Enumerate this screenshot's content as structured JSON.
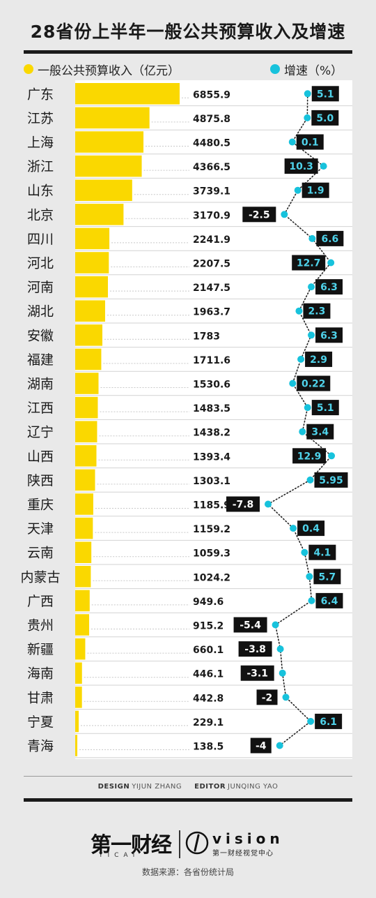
{
  "title": "28省份上半年一般公共预算收入及增速",
  "legend": {
    "income": "一般公共预算收入（亿元）",
    "growth": "增速（%）"
  },
  "colors": {
    "bar": "#fad800",
    "dot": "#17c2dc",
    "label_bg": "#111111",
    "label_text": "#4fd2ea",
    "label_text_negative": "#ffffff",
    "panel": "#ffffff",
    "page": "#e9e9e9"
  },
  "chart_data": {
    "type": "bar",
    "categories": [
      "广东",
      "江苏",
      "上海",
      "浙江",
      "山东",
      "北京",
      "四川",
      "河北",
      "河南",
      "湖北",
      "安徽",
      "福建",
      "湖南",
      "江西",
      "辽宁",
      "山西",
      "陕西",
      "重庆",
      "天津",
      "云南",
      "内蒙古",
      "广西",
      "贵州",
      "新疆",
      "海南",
      "甘肃",
      "宁夏",
      "青海"
    ],
    "series": [
      {
        "name": "一般公共预算收入（亿元）",
        "values": [
          6855.9,
          4875.8,
          4480.5,
          4366.5,
          3739.1,
          3170.9,
          2241.9,
          2207.5,
          2147.5,
          1963.7,
          1783,
          1711.6,
          1530.6,
          1483.5,
          1438.2,
          1393.4,
          1303.1,
          1185.9,
          1159.2,
          1059.3,
          1024.2,
          949.6,
          915.2,
          660.1,
          446.1,
          442.8,
          229.1,
          138.5
        ]
      },
      {
        "name": "增速（%）",
        "values": [
          5.1,
          5.0,
          0.1,
          10.3,
          1.9,
          -2.5,
          6.6,
          12.7,
          6.3,
          2.3,
          6.3,
          2.9,
          0.22,
          5.1,
          3.4,
          12.9,
          5.95,
          -7.8,
          0.4,
          4.1,
          5.7,
          6.4,
          -5.4,
          -3.8,
          -3.1,
          -2,
          6.1,
          -4
        ]
      }
    ],
    "value_labels": [
      "6855.9",
      "4875.8",
      "4480.5",
      "4366.5",
      "3739.1",
      "3170.9",
      "2241.9",
      "2207.5",
      "2147.5",
      "1963.7",
      "1783",
      "1711.6",
      "1530.6",
      "1483.5",
      "1438.2",
      "1393.4",
      "1303.1",
      "1185.9",
      "1159.2",
      "1059.3",
      "1024.2",
      "949.6",
      "915.2",
      "660.1",
      "446.1",
      "442.8",
      "229.1",
      "138.5"
    ],
    "growth_labels": [
      "5.1",
      "5.0",
      "0.1",
      "10.3",
      "1.9",
      "-2.5",
      "6.6",
      "12.7",
      "6.3",
      "2.3",
      "6.3",
      "2.9",
      "0.22",
      "5.1",
      "3.4",
      "12.9",
      "5.95",
      "-7.8",
      "0.4",
      "4.1",
      "5.7",
      "6.4",
      "-5.4",
      "-3.8",
      "-3.1",
      "-2",
      "6.1",
      "-4"
    ],
    "title": "28省份上半年一般公共预算收入及增速",
    "xlabel": "",
    "ylabel": "",
    "xlim": [
      0,
      6855.9
    ],
    "growth_range": [
      -7.8,
      12.9
    ],
    "orientation": "horizontal",
    "legend_position": "top"
  },
  "credits": {
    "design_label": "DESIGN",
    "design_name": "YIJUN ZHANG",
    "editor_label": "EDITOR",
    "editor_name": "JUNQING YAO"
  },
  "logos": {
    "yicai": "第一财经",
    "yicai_sub": "YICAI",
    "vision": "vision",
    "vision_sub": "第一财经视觉中心"
  },
  "source": "数据来源：各省份统计局"
}
